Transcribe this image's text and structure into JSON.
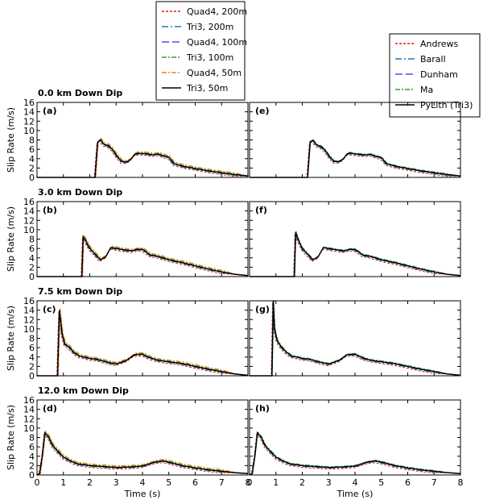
{
  "figure": {
    "xlabel": "Time (s)",
    "ylabel": "Slip Rate (m/s)",
    "xlim": [
      0,
      8
    ],
    "ylim": [
      0,
      16
    ],
    "xticks": [
      0,
      1,
      2,
      3,
      4,
      5,
      6,
      7,
      8
    ],
    "yticks": [
      0,
      2,
      4,
      6,
      8,
      10,
      12,
      14,
      16
    ]
  },
  "legend_left": [
    {
      "name": "Quad4, 200m",
      "color": "#e31a1c",
      "dash": "3,2"
    },
    {
      "name": "Tri3, 200m",
      "color": "#1f78b4",
      "dash": "8,3,2,3"
    },
    {
      "name": "Quad4, 100m",
      "color": "#6a3dff",
      "dash": "9,4"
    },
    {
      "name": "Tri3, 100m",
      "color": "#33a02c",
      "dash": "6,2,2,2"
    },
    {
      "name": "Quad4, 50m",
      "color": "#ff7f00",
      "dash": "6,2,2,2"
    },
    {
      "name": "Tri3, 50m",
      "color": "#000000",
      "dash": ""
    }
  ],
  "legend_right": [
    {
      "name": "Andrews",
      "color": "#e31a1c",
      "dash": "3,2"
    },
    {
      "name": "Barall",
      "color": "#1f78b4",
      "dash": "8,3,2,3"
    },
    {
      "name": "Dunham",
      "color": "#6a3dff",
      "dash": "9,4"
    },
    {
      "name": "Ma",
      "color": "#33a02c",
      "dash": "6,2,2,2"
    },
    {
      "name": "PyLith (Tri3)",
      "color": "#000000",
      "dash": ""
    }
  ],
  "rows": [
    {
      "title": "0.0 km Down Dip",
      "left_label": "(a)",
      "right_label": "(e)"
    },
    {
      "title": "3.0 km Down Dip",
      "left_label": "(b)",
      "right_label": "(f)"
    },
    {
      "title": "7.5 km Down Dip",
      "left_label": "(c)",
      "right_label": "(g)"
    },
    {
      "title": "12.0 km Down Dip",
      "left_label": "(d)",
      "right_label": "(h)"
    }
  ],
  "chart_data": [
    {
      "type": "line",
      "panel": "(a)",
      "xlim": [
        0,
        8
      ],
      "ylim": [
        0,
        16
      ],
      "series": [
        {
          "name": "Tri3, 50m",
          "x": [
            0,
            2.2,
            2.3,
            2.4,
            2.55,
            2.7,
            2.85,
            3.0,
            3.2,
            3.4,
            3.55,
            3.7,
            3.8,
            4.0,
            4.2,
            4.4,
            4.6,
            4.8,
            5.0,
            5.2,
            5.6,
            6.0,
            6.5,
            7.0,
            7.5,
            8.0
          ],
          "y": [
            0,
            0,
            7.5,
            8.0,
            7.0,
            6.8,
            6.0,
            4.8,
            3.4,
            3.3,
            3.8,
            4.9,
            5.1,
            5.1,
            5.0,
            4.8,
            5.0,
            4.6,
            4.3,
            2.9,
            2.3,
            1.9,
            1.4,
            1.0,
            0.6,
            0.3
          ]
        }
      ]
    },
    {
      "type": "line",
      "panel": "(b)",
      "xlim": [
        0,
        8
      ],
      "ylim": [
        0,
        16
      ],
      "series": [
        {
          "name": "Tri3, 50m",
          "x": [
            0,
            1.7,
            1.75,
            1.85,
            2.0,
            2.2,
            2.4,
            2.6,
            2.8,
            3.0,
            3.2,
            3.4,
            3.6,
            3.8,
            4.0,
            4.3,
            4.6,
            5.0,
            5.5,
            6.0,
            6.5,
            7.0,
            7.5,
            8.0
          ],
          "y": [
            0,
            0,
            8.5,
            7.6,
            6.0,
            4.8,
            3.6,
            4.2,
            6.2,
            6.0,
            5.8,
            5.6,
            5.5,
            5.8,
            5.8,
            4.6,
            4.3,
            3.6,
            3.0,
            2.3,
            1.6,
            1.0,
            0.5,
            0.2
          ]
        }
      ]
    },
    {
      "type": "line",
      "panel": "(c)",
      "xlim": [
        0,
        8
      ],
      "ylim": [
        0,
        16
      ],
      "series": [
        {
          "name": "Tri3, 50m",
          "x": [
            0,
            0.78,
            0.85,
            0.95,
            1.05,
            1.2,
            1.4,
            1.6,
            1.8,
            2.0,
            2.3,
            2.6,
            3.0,
            3.4,
            3.7,
            4.0,
            4.3,
            4.6,
            5.0,
            5.5,
            6.0,
            6.5,
            7.0,
            7.5,
            8.0
          ],
          "y": [
            0,
            0,
            14.0,
            9.0,
            6.8,
            6.2,
            5.0,
            4.2,
            4.0,
            3.7,
            3.5,
            3.0,
            2.5,
            3.3,
            4.5,
            4.6,
            3.8,
            3.3,
            3.0,
            2.6,
            2.0,
            1.4,
            0.9,
            0.4,
            0.1
          ]
        }
      ]
    },
    {
      "type": "line",
      "panel": "(d)",
      "xlim": [
        0,
        8
      ],
      "ylim": [
        0,
        16
      ],
      "series": [
        {
          "name": "Tri3, 50m",
          "x": [
            0,
            0.1,
            0.2,
            0.3,
            0.45,
            0.6,
            0.8,
            1.0,
            1.2,
            1.5,
            2.0,
            2.5,
            3.0,
            3.5,
            4.0,
            4.5,
            4.8,
            5.1,
            5.5,
            6.0,
            6.5,
            7.0,
            7.5,
            8.0
          ],
          "y": [
            0,
            0.3,
            4.0,
            9.0,
            8.0,
            6.2,
            5.0,
            3.8,
            3.2,
            2.4,
            2.0,
            1.8,
            1.6,
            1.7,
            1.9,
            2.8,
            3.0,
            2.6,
            2.0,
            1.5,
            1.1,
            0.8,
            0.5,
            0.3
          ]
        }
      ]
    },
    {
      "type": "line",
      "panel": "(e)",
      "xlim": [
        0,
        8
      ],
      "ylim": [
        0,
        16
      ],
      "series": [
        {
          "name": "PyLith (Tri3)",
          "x": [
            0,
            2.2,
            2.3,
            2.4,
            2.55,
            2.7,
            2.85,
            3.0,
            3.2,
            3.4,
            3.55,
            3.7,
            3.8,
            4.0,
            4.2,
            4.4,
            4.6,
            4.8,
            5.0,
            5.2,
            5.6,
            6.0,
            6.5,
            7.0,
            7.5,
            8.0
          ],
          "y": [
            0,
            0,
            7.6,
            7.9,
            6.9,
            6.6,
            5.9,
            4.7,
            3.4,
            3.4,
            3.9,
            5.0,
            5.2,
            5.0,
            4.9,
            4.8,
            4.9,
            4.5,
            4.2,
            2.9,
            2.3,
            1.9,
            1.4,
            1.0,
            0.6,
            0.3
          ]
        }
      ]
    },
    {
      "type": "line",
      "panel": "(f)",
      "xlim": [
        0,
        8
      ],
      "ylim": [
        0,
        16
      ],
      "series": [
        {
          "name": "PyLith (Tri3)",
          "x": [
            0,
            1.7,
            1.75,
            1.85,
            2.0,
            2.2,
            2.4,
            2.6,
            2.8,
            3.0,
            3.2,
            3.4,
            3.6,
            3.8,
            4.0,
            4.3,
            4.6,
            5.0,
            5.5,
            6.0,
            6.5,
            7.0,
            7.5,
            8.0
          ],
          "y": [
            0,
            0,
            9.5,
            7.8,
            6.0,
            4.8,
            3.6,
            4.2,
            6.2,
            6.0,
            5.8,
            5.6,
            5.5,
            5.8,
            5.8,
            4.6,
            4.3,
            3.6,
            3.0,
            2.3,
            1.6,
            1.0,
            0.5,
            0.2
          ]
        }
      ]
    },
    {
      "type": "line",
      "panel": "(g)",
      "xlim": [
        0,
        8
      ],
      "ylim": [
        0,
        16
      ],
      "series": [
        {
          "name": "PyLith (Tri3)",
          "x": [
            0,
            0.85,
            0.9,
            0.95,
            1.05,
            1.2,
            1.4,
            1.6,
            1.8,
            2.0,
            2.3,
            2.6,
            3.0,
            3.4,
            3.7,
            4.0,
            4.3,
            4.6,
            5.0,
            5.5,
            6.0,
            6.5,
            7.0,
            7.5,
            8.0
          ],
          "y": [
            0,
            0,
            16.0,
            10.0,
            7.5,
            6.2,
            5.0,
            4.2,
            4.0,
            3.7,
            3.5,
            3.0,
            2.5,
            3.3,
            4.5,
            4.6,
            3.8,
            3.3,
            3.0,
            2.6,
            2.0,
            1.4,
            0.9,
            0.4,
            0.1
          ]
        }
      ]
    },
    {
      "type": "line",
      "panel": "(h)",
      "xlim": [
        0,
        8
      ],
      "ylim": [
        0,
        16
      ],
      "series": [
        {
          "name": "PyLith (Tri3)",
          "x": [
            0,
            0.1,
            0.2,
            0.3,
            0.45,
            0.6,
            0.8,
            1.0,
            1.2,
            1.5,
            2.0,
            2.5,
            3.0,
            3.5,
            4.0,
            4.5,
            4.8,
            5.1,
            5.5,
            6.0,
            6.5,
            7.0,
            7.5,
            8.0
          ],
          "y": [
            0,
            0.3,
            4.0,
            9.0,
            8.0,
            6.2,
            5.0,
            3.8,
            3.2,
            2.4,
            2.0,
            1.8,
            1.6,
            1.7,
            1.9,
            2.8,
            3.0,
            2.6,
            2.0,
            1.5,
            1.1,
            0.8,
            0.5,
            0.3
          ]
        }
      ]
    }
  ]
}
